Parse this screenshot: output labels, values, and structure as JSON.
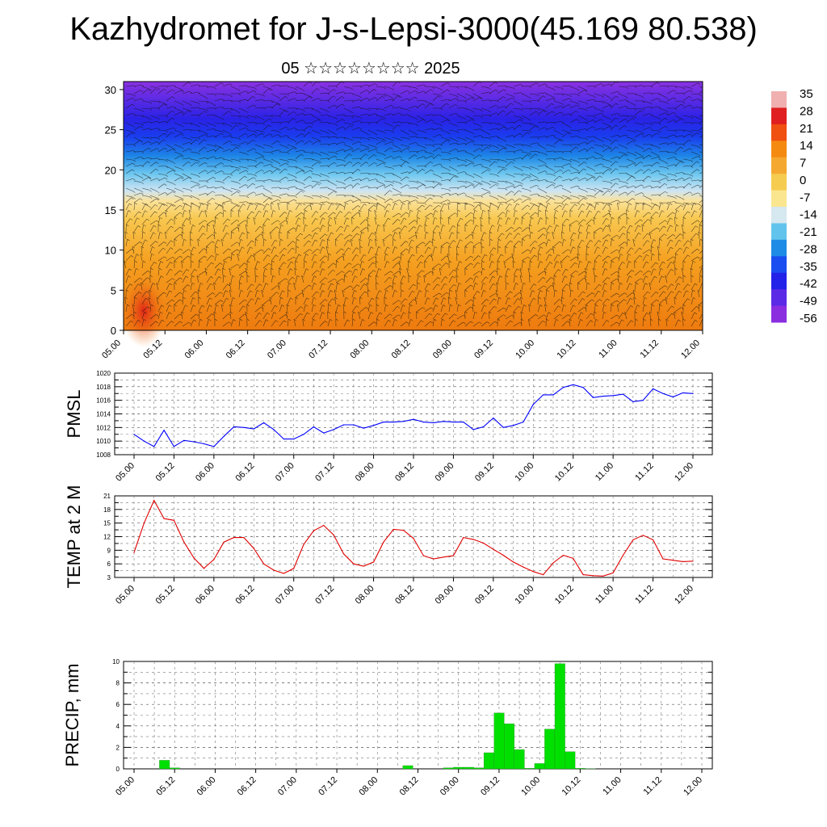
{
  "title": "Kazhydromet for J-s-Lepsi-3000(45.169 80.538)",
  "subtitle": "05 ☆☆☆☆☆☆☆☆ 2025",
  "chart_data": [
    {
      "type": "heatmap",
      "description_units": "cross-section of temperature with wind barbs",
      "y_ticks": [
        "0",
        "5",
        "10",
        "15",
        "20",
        "25",
        "30"
      ],
      "ylim": [
        0,
        31
      ],
      "x_ticks": [
        "05.00",
        "05.12",
        "06.00",
        "06.12",
        "07.00",
        "07.12",
        "08.00",
        "08.12",
        "09.00",
        "09.12",
        "10.00",
        "10.12",
        "11.00",
        "11.12",
        "12.00"
      ],
      "colorbar": {
        "labels": [
          "35",
          "28",
          "21",
          "14",
          "7",
          "0",
          "-7",
          "-14",
          "-21",
          "-28",
          "-35",
          "-42",
          "-49",
          "-56"
        ],
        "colors": [
          "#f0b0b0",
          "#e02020",
          "#f05010",
          "#f58a10",
          "#f5a830",
          "#f5cc50",
          "#fbe690",
          "#d6e8f0",
          "#62c4ec",
          "#1e8ce6",
          "#1a4ef0",
          "#2222e8",
          "#5a2ae6",
          "#8a2ee0"
        ]
      }
    },
    {
      "type": "line",
      "ylabel": "PMSL",
      "ylim": [
        1008,
        1020
      ],
      "y_ticks": [
        "1008",
        "1010",
        "1012",
        "1014",
        "1016",
        "1018",
        "1020"
      ],
      "x_ticks": [
        "05.00",
        "05.12",
        "06.00",
        "06.12",
        "07.00",
        "07.12",
        "08.00",
        "08.12",
        "09.00",
        "09.12",
        "10.00",
        "10.12",
        "11.00",
        "11.12",
        "12.00"
      ],
      "color": "#0000ff",
      "x": [
        0,
        3,
        6,
        9,
        12,
        15,
        18,
        21,
        24,
        27,
        30,
        33,
        36,
        39,
        42,
        45,
        48,
        51,
        54,
        57,
        60,
        63,
        66,
        69,
        72,
        75,
        78,
        81,
        84,
        87,
        90,
        93,
        96,
        99,
        102,
        105,
        108,
        111,
        114,
        117,
        120,
        123,
        126,
        129,
        132,
        135,
        138,
        141,
        144,
        147,
        150,
        153,
        156,
        159,
        162,
        165,
        168
      ],
      "values": [
        1011.0,
        1010.0,
        1009.2,
        1011.6,
        1009.2,
        1010.1,
        1009.9,
        1009.6,
        1009.2,
        1010.7,
        1012.1,
        1012.0,
        1011.8,
        1012.7,
        1011.7,
        1010.3,
        1010.3,
        1011.0,
        1012.1,
        1011.2,
        1011.7,
        1012.4,
        1012.4,
        1011.9,
        1012.3,
        1012.8,
        1012.8,
        1012.9,
        1013.2,
        1012.8,
        1012.7,
        1012.9,
        1012.8,
        1012.8,
        1011.7,
        1012.1,
        1013.4,
        1012.0,
        1012.3,
        1012.8,
        1015.4,
        1016.8,
        1016.8,
        1017.9,
        1018.3,
        1017.9,
        1016.4,
        1016.6,
        1016.7,
        1016.9,
        1015.8,
        1016.0,
        1017.7,
        1017.0,
        1016.5,
        1017.1,
        1017.0
      ]
    },
    {
      "type": "line",
      "ylabel": "TEMP at 2 M",
      "ylim": [
        3,
        21
      ],
      "y_ticks": [
        "3",
        "6",
        "9",
        "12",
        "15",
        "18",
        "21"
      ],
      "x_ticks": [
        "05.00",
        "05.12",
        "06.00",
        "06.12",
        "07.00",
        "07.12",
        "08.00",
        "08.12",
        "09.00",
        "09.12",
        "10.00",
        "10.12",
        "11.00",
        "11.12",
        "12.00"
      ],
      "color": "#e00000",
      "x": [
        0,
        3,
        6,
        9,
        12,
        15,
        18,
        21,
        24,
        27,
        30,
        33,
        36,
        39,
        42,
        45,
        48,
        51,
        54,
        57,
        60,
        63,
        66,
        69,
        72,
        75,
        78,
        81,
        84,
        87,
        90,
        93,
        96,
        99,
        102,
        105,
        108,
        111,
        114,
        117,
        120,
        123,
        126,
        129,
        132,
        135,
        138,
        141,
        144,
        147,
        150,
        153,
        156,
        159,
        162,
        165,
        168
      ],
      "values": [
        8.5,
        15.0,
        20.0,
        16.0,
        15.6,
        10.8,
        7.3,
        5.0,
        7.0,
        10.8,
        11.8,
        11.8,
        9.4,
        6.0,
        4.6,
        3.9,
        5.0,
        10.3,
        13.3,
        14.5,
        12.4,
        8.2,
        6.0,
        5.5,
        6.4,
        10.8,
        13.6,
        13.4,
        11.6,
        7.8,
        7.1,
        7.5,
        7.8,
        11.8,
        11.4,
        10.6,
        9.2,
        7.9,
        6.4,
        5.3,
        4.3,
        3.6,
        6.2,
        7.9,
        7.2,
        3.6,
        3.4,
        3.3,
        4.0,
        7.9,
        11.3,
        12.3,
        11.3,
        7.1,
        6.8,
        6.5,
        6.6
      ]
    },
    {
      "type": "bar",
      "ylabel": "PRECIP, mm",
      "ylim": [
        0,
        10
      ],
      "y_ticks": [
        "0",
        "2",
        "4",
        "6",
        "8",
        "10"
      ],
      "x_ticks": [
        "05.00",
        "05.12",
        "06.00",
        "06.12",
        "07.00",
        "07.12",
        "08.00",
        "08.12",
        "09.00",
        "09.12",
        "10.00",
        "10.12",
        "11.00",
        "11.12",
        "12.00"
      ],
      "color": "#00e000",
      "x": [
        9,
        12,
        81,
        93,
        96,
        99,
        102,
        105,
        108,
        111,
        114,
        117,
        120,
        123,
        126,
        129,
        132,
        135
      ],
      "values": [
        0.8,
        0.1,
        0.3,
        0.1,
        0.15,
        0.15,
        0.1,
        1.5,
        5.2,
        4.2,
        1.8,
        0.05,
        0.5,
        3.7,
        9.8,
        1.6,
        0.05,
        0.02
      ]
    }
  ]
}
